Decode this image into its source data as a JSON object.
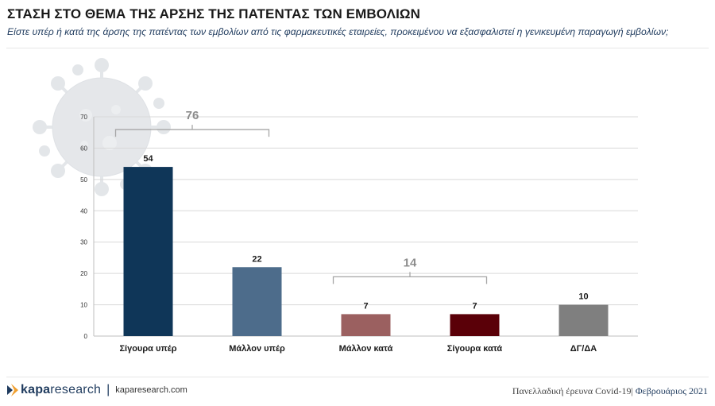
{
  "header": {
    "title": "ΣΤΑΣΗ ΣΤΟ ΘΕΜΑ ΤΗΣ ΑΡΣΗΣ ΤΗΣ ΠΑΤΕΝΤΑΣ ΤΩΝ ΕΜΒΟΛΙΩΝ",
    "subtitle": "Είστε υπέρ ή κατά της άρσης της πατέντας των εμβολίων από τις φαρμακευτικές εταιρείες, προκειμένου να εξασφαλιστεί η γενικευμένη παραγωγή εμβολίων;"
  },
  "chart_data": {
    "type": "bar",
    "categories": [
      "Σίγουρα υπέρ",
      "Μάλλον υπέρ",
      "Μάλλον κατά",
      "Σίγουρα κατά",
      "ΔΓ/ΔΑ"
    ],
    "values": [
      54,
      22,
      7,
      7,
      10
    ],
    "colors": [
      "#0f3658",
      "#4d6c8b",
      "#9b6060",
      "#5a0008",
      "#7f7f7f"
    ],
    "ylim": [
      0,
      70
    ],
    "yticks": [
      0,
      10,
      20,
      30,
      40,
      50,
      60,
      70
    ],
    "grid": true,
    "group_totals": [
      {
        "label": "76",
        "from": 0,
        "to": 1
      },
      {
        "label": "14",
        "from": 2,
        "to": 3
      }
    ]
  },
  "footer": {
    "brand_bold": "kapa",
    "brand_rest": "research",
    "separator": "|",
    "website": "kaparesearch.com",
    "survey": "Πανελλαδική έρευνα Covid-19|",
    "date": " Φεβρουάριος 2021"
  },
  "colors": {
    "grid": "#d9d9d9",
    "bracket": "#a6a6a6",
    "brand": "#1f3b5e",
    "logo_accent": "#f0a030"
  }
}
